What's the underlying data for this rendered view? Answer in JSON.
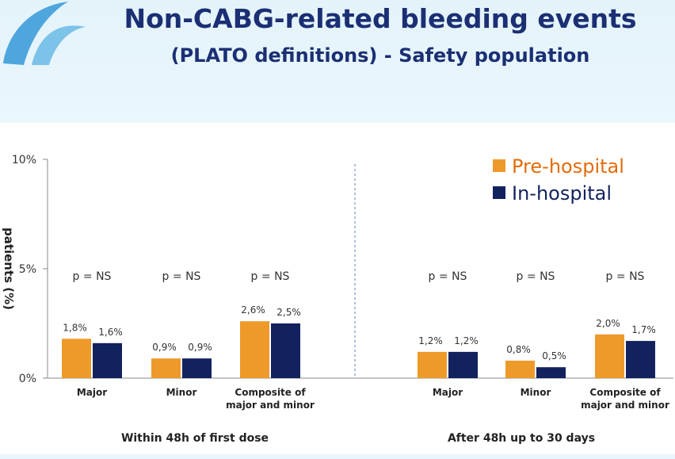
{
  "header": {
    "title": "Non-CABG-related bleeding events",
    "subtitle": "(PLATO definitions) - Safety population"
  },
  "colors": {
    "pre_hospital": "#ee9a2a",
    "in_hospital": "#12225f",
    "title": "#1b2f74",
    "legend_pre": "#e36c0a"
  },
  "chart_data": {
    "type": "bar",
    "ylabel": "patients (%)",
    "ylim": [
      0,
      10
    ],
    "yticks": [
      "0%",
      "5%",
      "10%"
    ],
    "legend": {
      "position": "top-right",
      "entries": [
        "Pre-hospital",
        "In-hospital"
      ]
    },
    "grid": false,
    "groups": [
      {
        "label": "Within 48h of first dose",
        "categories": [
          [
            "Major"
          ],
          [
            "Minor"
          ],
          [
            "Composite of",
            "major and minor"
          ]
        ],
        "pvalues": [
          "p = NS",
          "p = NS",
          "p = NS"
        ],
        "series": [
          {
            "name": "Pre-hospital",
            "values": [
              1.8,
              0.9,
              2.6
            ],
            "labels": [
              "1,8%",
              "0,9%",
              "2,6%"
            ]
          },
          {
            "name": "In-hospital",
            "values": [
              1.6,
              0.9,
              2.5
            ],
            "labels": [
              "1,6%",
              "0,9%",
              "2,5%"
            ]
          }
        ]
      },
      {
        "label": "After 48h up to 30 days",
        "categories": [
          [
            "Major"
          ],
          [
            "Minor"
          ],
          [
            "Composite of",
            "major and minor"
          ]
        ],
        "pvalues": [
          "p = NS",
          "p = NS",
          "p = NS"
        ],
        "series": [
          {
            "name": "Pre-hospital",
            "values": [
              1.2,
              0.8,
              2.0
            ],
            "labels": [
              "1,2%",
              "0,8%",
              "2,0%"
            ]
          },
          {
            "name": "In-hospital",
            "values": [
              1.2,
              0.5,
              1.7
            ],
            "labels": [
              "1,2%",
              "0,5%",
              "1,7%"
            ]
          }
        ]
      }
    ]
  }
}
